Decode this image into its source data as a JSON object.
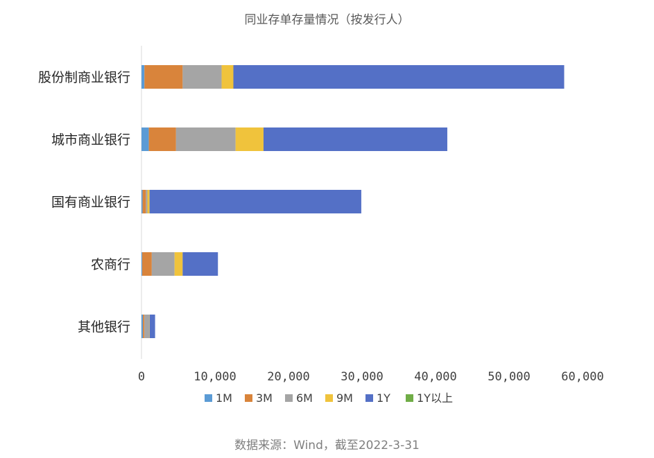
{
  "chart_data": {
    "type": "bar",
    "orientation": "horizontal",
    "stacked": true,
    "title": "同业存单存量情况（按发行人）",
    "categories": [
      "股份制商业银行",
      "城市商业银行",
      "国有商业银行",
      "农商行",
      "其他银行"
    ],
    "series": [
      {
        "name": "1M",
        "color": "#5b9bd5",
        "values": [
          400,
          1000,
          150,
          100,
          200
        ]
      },
      {
        "name": "3M",
        "color": "#d9843b",
        "values": [
          5200,
          3700,
          450,
          1300,
          200
        ]
      },
      {
        "name": "6M",
        "color": "#a5a5a5",
        "values": [
          5300,
          8100,
          200,
          3100,
          650
        ]
      },
      {
        "name": "9M",
        "color": "#f0c33c",
        "values": [
          1600,
          3800,
          300,
          1100,
          50
        ]
      },
      {
        "name": "1Y",
        "color": "#5470c6",
        "values": [
          45000,
          25000,
          28800,
          4800,
          750
        ]
      },
      {
        "name": "1Y以上",
        "color": "#70ad47",
        "values": [
          0,
          0,
          0,
          0,
          0
        ]
      }
    ],
    "xlim": [
      0,
      60000
    ],
    "xticks": [
      0,
      10000,
      20000,
      30000,
      40000,
      50000,
      60000
    ],
    "xtick_labels": [
      "0",
      "10,000",
      "20,000",
      "30,000",
      "40,000",
      "50,000",
      "60,000"
    ],
    "grid": false,
    "legend_position": "bottom"
  },
  "source": "数据来源：Wind，截至2022-3-31"
}
